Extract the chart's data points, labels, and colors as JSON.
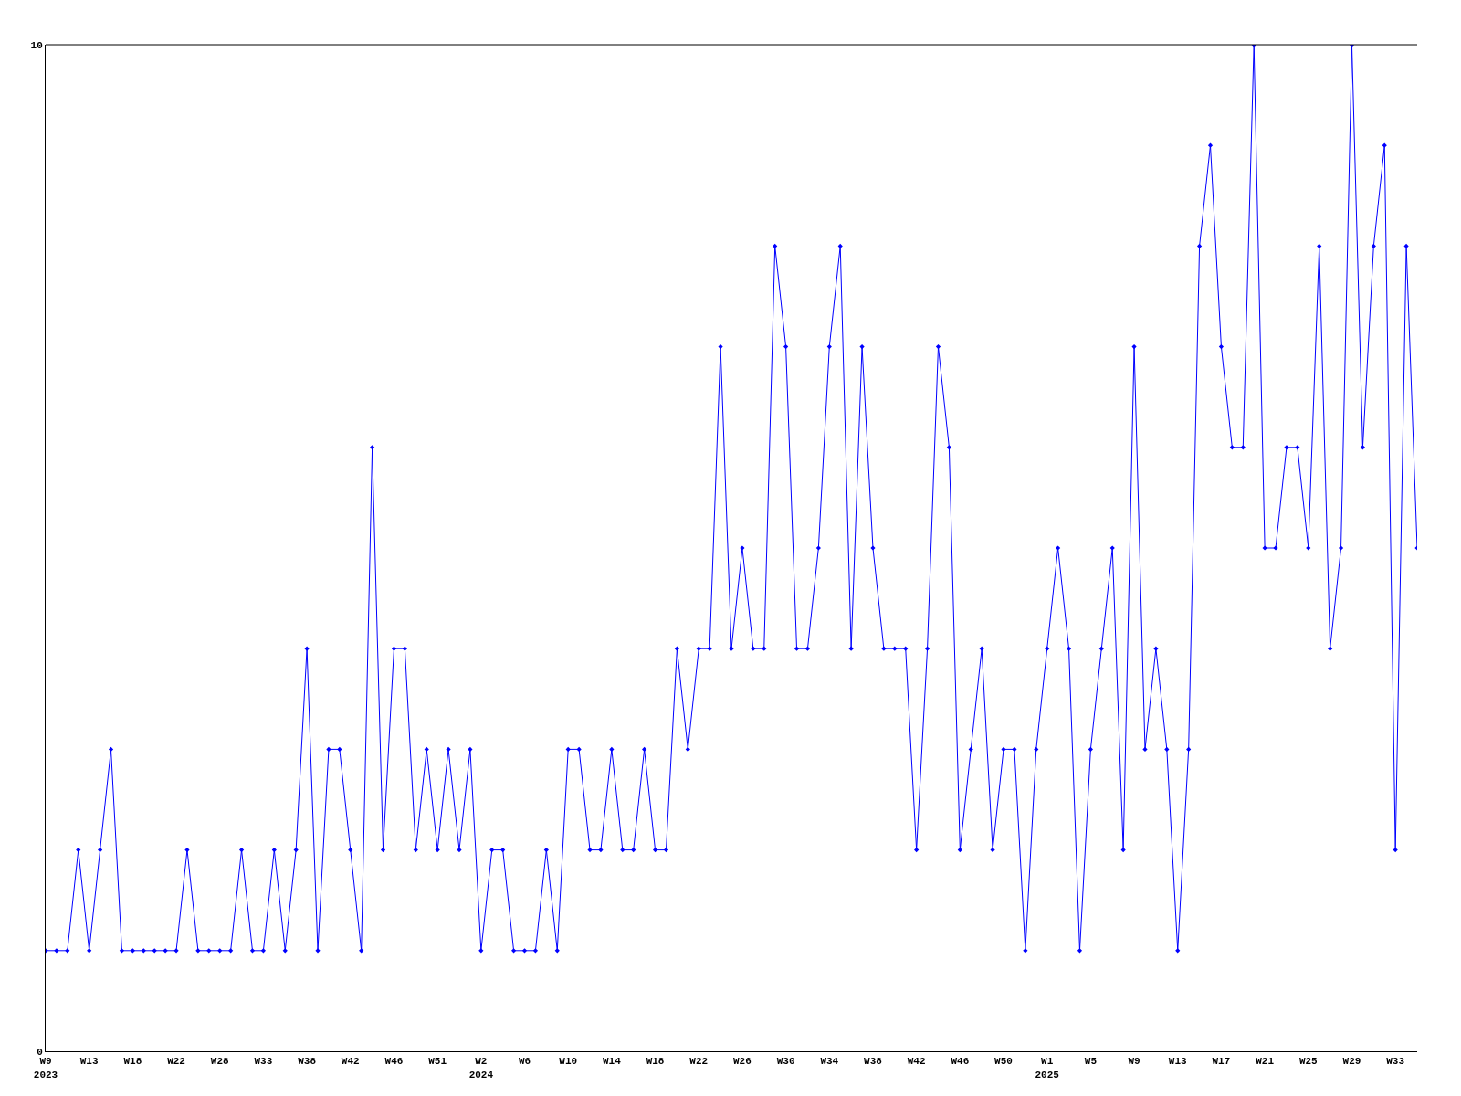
{
  "chart_data": {
    "type": "line",
    "categories": [
      "W9\n2023",
      null,
      null,
      null,
      "W13",
      null,
      null,
      null,
      "W18",
      null,
      null,
      null,
      "W22",
      null,
      null,
      null,
      "W28",
      null,
      null,
      null,
      "W33",
      null,
      null,
      null,
      "W38",
      null,
      null,
      null,
      "W42",
      null,
      null,
      null,
      "W46",
      null,
      null,
      null,
      "W51",
      null,
      null,
      null,
      "W2\n2024",
      null,
      null,
      null,
      "W6",
      null,
      null,
      null,
      "W10",
      null,
      null,
      null,
      "W14",
      null,
      null,
      null,
      "W18",
      null,
      null,
      null,
      "W22",
      null,
      null,
      null,
      "W26",
      null,
      null,
      null,
      "W30",
      null,
      null,
      null,
      "W34",
      null,
      null,
      null,
      "W38",
      null,
      null,
      null,
      "W42",
      null,
      null,
      null,
      "W46",
      null,
      null,
      null,
      "W50",
      null,
      null,
      null,
      "W1\n2025",
      null,
      null,
      null,
      "W5",
      null,
      null,
      null,
      "W9",
      null,
      null,
      null,
      "W13",
      null,
      null,
      null,
      "W17",
      null,
      null,
      null,
      "W21",
      null,
      null,
      null,
      "W25",
      null,
      null,
      null,
      "W29",
      null,
      null,
      null,
      "W33",
      null,
      null
    ],
    "series": [
      {
        "color": "#0000ff",
        "values": [
          1,
          1,
          1,
          2,
          1,
          2,
          3,
          1,
          1,
          1,
          1,
          1,
          1,
          2,
          1,
          1,
          1,
          1,
          2,
          1,
          1,
          2,
          1,
          2,
          4,
          1,
          3,
          3,
          2,
          1,
          6,
          2,
          4,
          4,
          2,
          3,
          2,
          3,
          2,
          3,
          1,
          2,
          2,
          1,
          1,
          1,
          2,
          1,
          3,
          3,
          2,
          2,
          3,
          2,
          2,
          3,
          2,
          2,
          4,
          3,
          4,
          4,
          7,
          4,
          5,
          4,
          4,
          8,
          7,
          4,
          4,
          5,
          7,
          8,
          4,
          7,
          5,
          4,
          4,
          4,
          2,
          4,
          7,
          6,
          2,
          3,
          4,
          2,
          3,
          3,
          1,
          3,
          4,
          5,
          4,
          1,
          3,
          4,
          5,
          2,
          7,
          3,
          4,
          3,
          1,
          3,
          8,
          9,
          7,
          6,
          6,
          10,
          5,
          5,
          6,
          6,
          5,
          8,
          4,
          5,
          10,
          6,
          8,
          9,
          2,
          8,
          5
        ]
      }
    ],
    "ylim": [
      0,
      10
    ],
    "yticks": [
      0,
      10
    ],
    "grid": false,
    "marker": "diamond",
    "line_style": "solid"
  }
}
